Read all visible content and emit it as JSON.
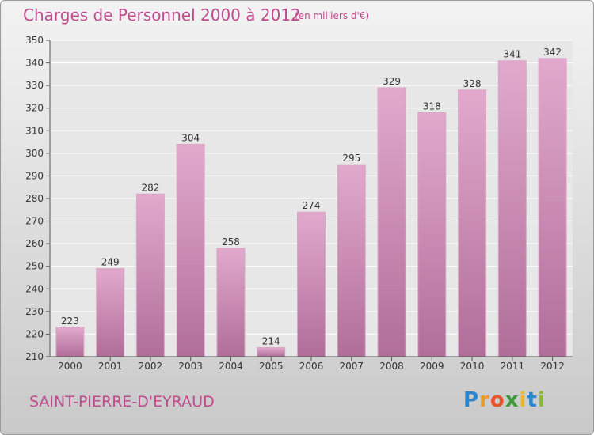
{
  "title": "Charges de Personnel 2000 à 2012",
  "subtitle": "(en milliers d'€)",
  "commune": "SAINT-PIERRE-D'EYRAUD",
  "logo": {
    "letters": [
      "P",
      "r",
      "o",
      "x",
      "i",
      "t",
      "i"
    ],
    "colors": [
      "#2c86c9",
      "#e89a2a",
      "#e5562a",
      "#3c9a3a",
      "#e8b82c",
      "#2c86c9",
      "#8cb83a"
    ]
  },
  "colors": {
    "bar": "#d592bd",
    "bar_dark": "#b06e99",
    "accent": "#c04a8e"
  },
  "chart_data": {
    "type": "bar",
    "title": "Charges de Personnel 2000 à 2012",
    "subtitle": "(en milliers d'€)",
    "categories": [
      "2000",
      "2001",
      "2002",
      "2003",
      "2004",
      "2005",
      "2006",
      "2007",
      "2008",
      "2009",
      "2010",
      "2011",
      "2012"
    ],
    "values": [
      223,
      249,
      282,
      304,
      258,
      214,
      274,
      295,
      329,
      318,
      328,
      341,
      342
    ],
    "ylim": [
      210,
      350
    ],
    "yticks": [
      210,
      220,
      230,
      240,
      250,
      260,
      270,
      280,
      290,
      300,
      310,
      320,
      330,
      340,
      350
    ],
    "grid": true,
    "data_labels": true
  }
}
